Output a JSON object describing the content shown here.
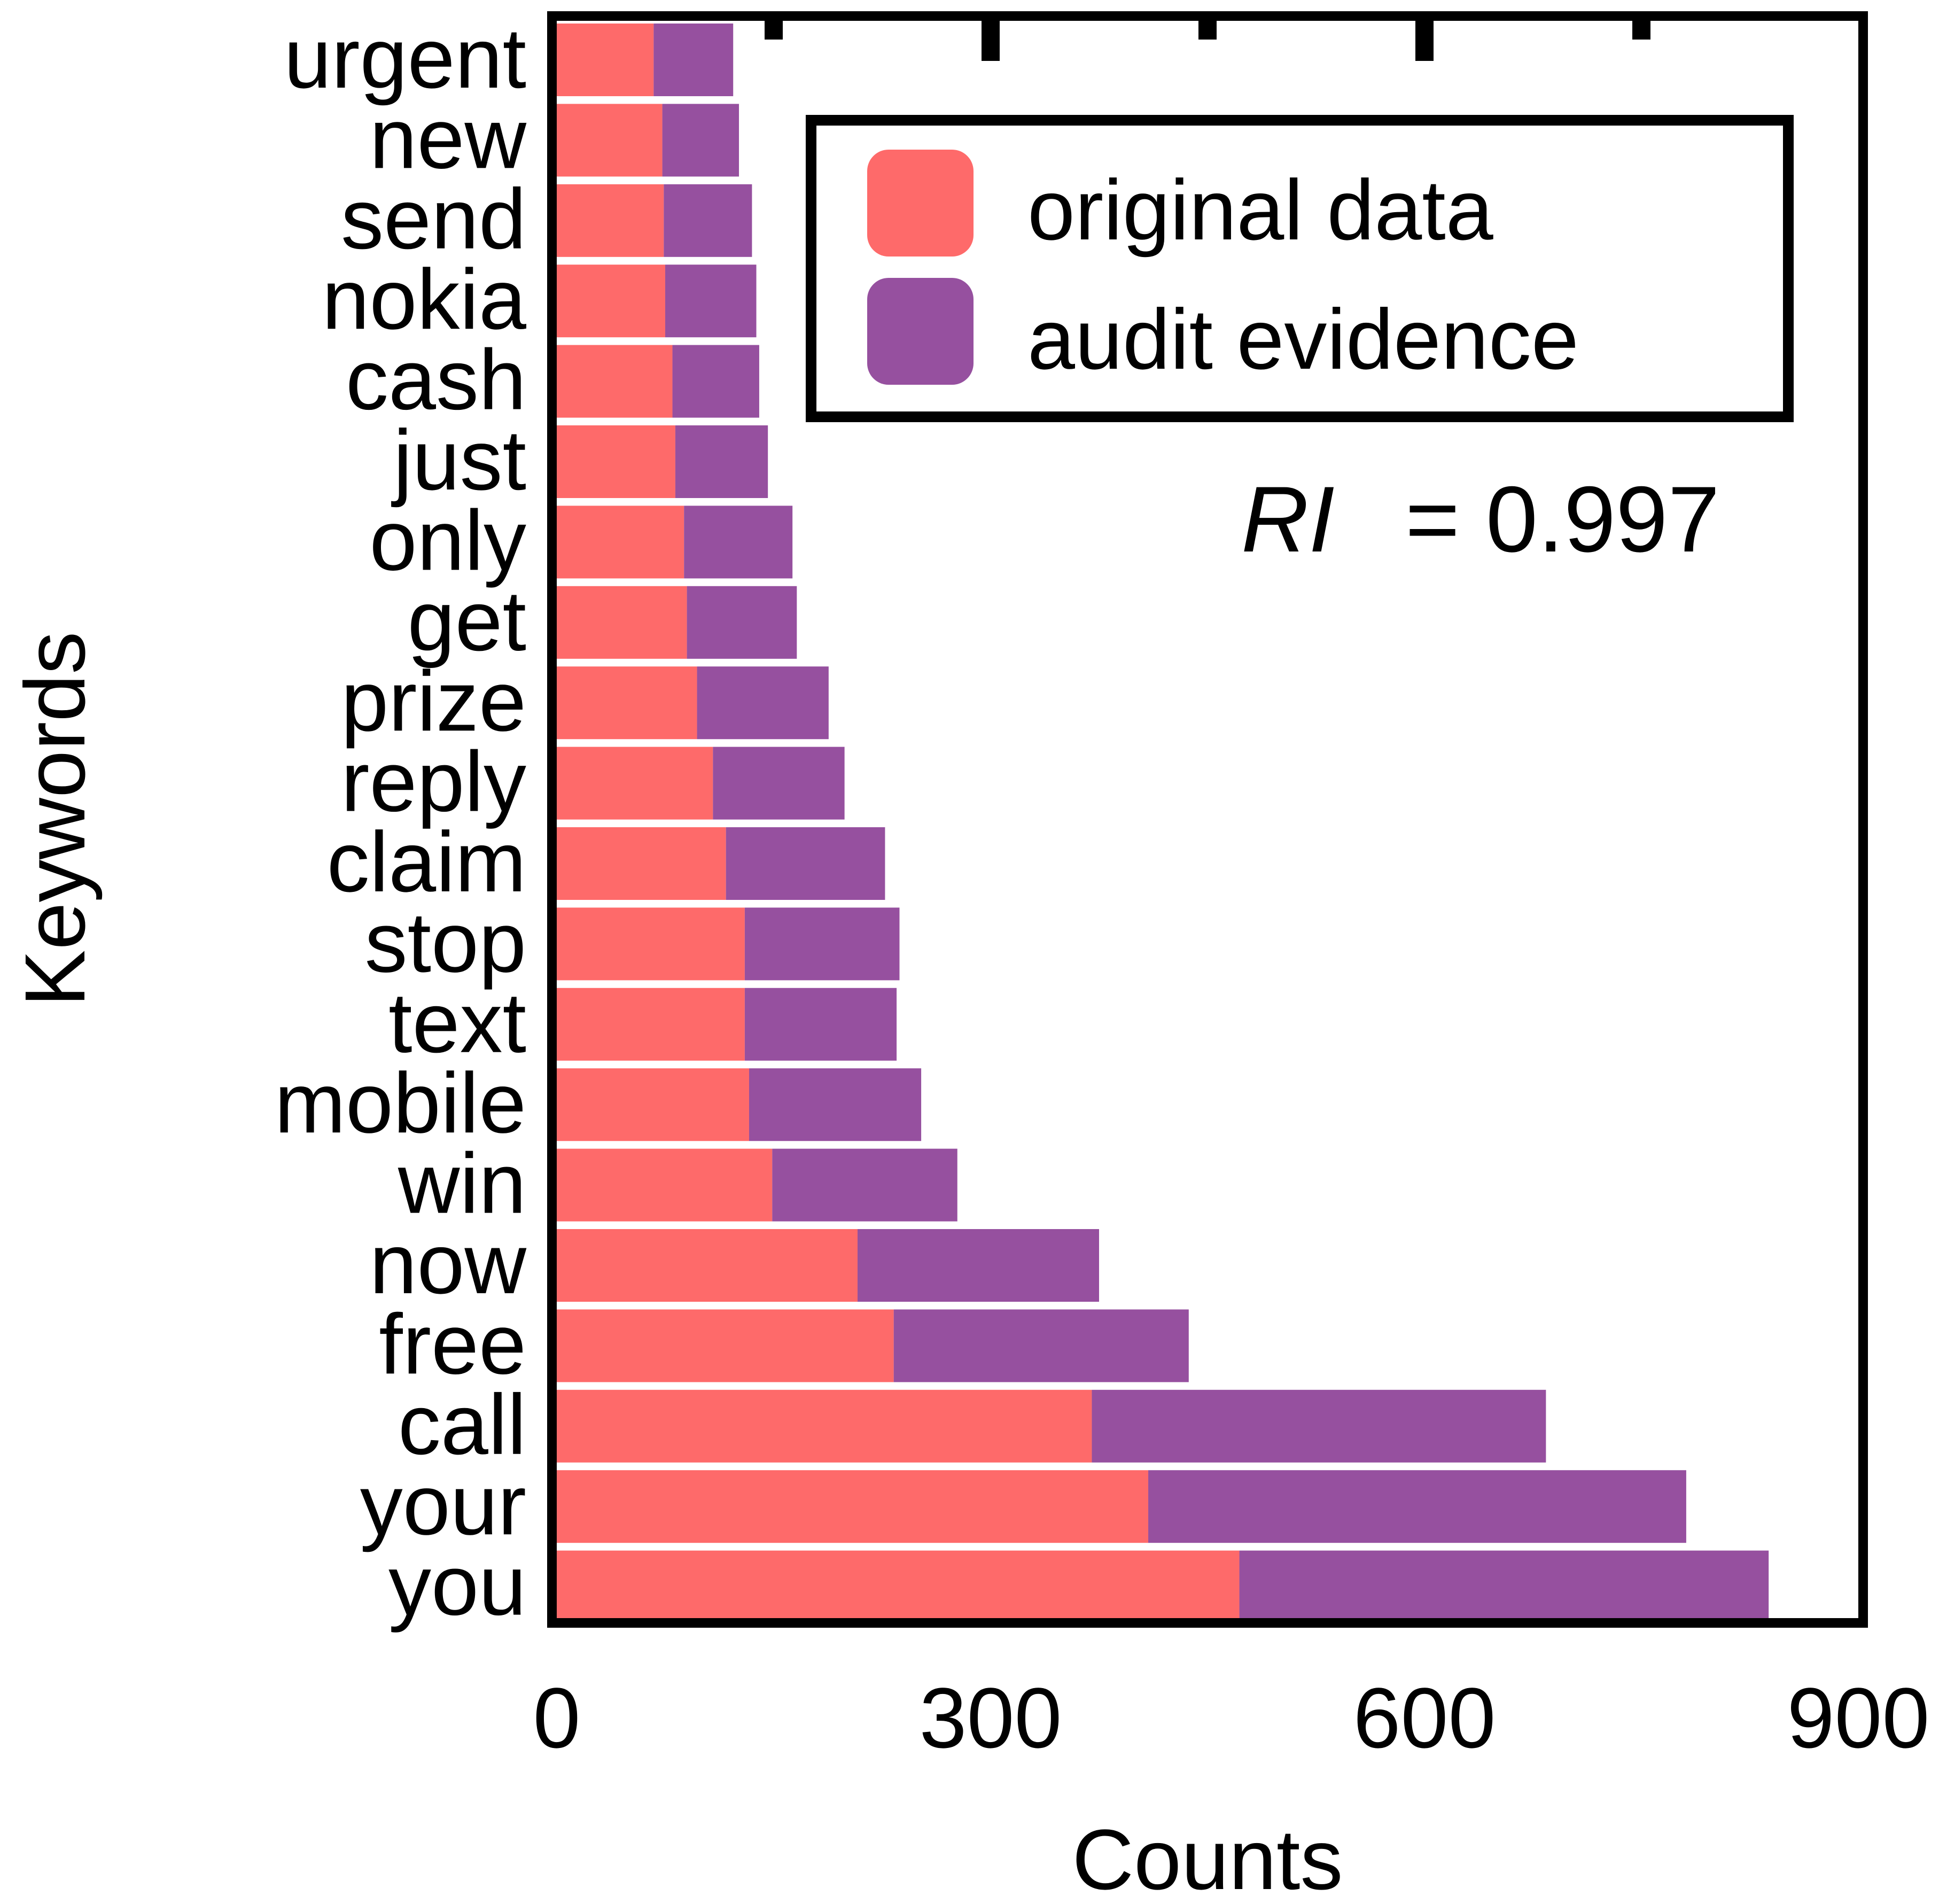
{
  "chart_data": {
    "type": "bar",
    "orientation": "horizontal",
    "stacked": true,
    "categories": [
      "urgent",
      "new",
      "send",
      "nokia",
      "cash",
      "just",
      "only",
      "get",
      "prize",
      "reply",
      "claim",
      "stop",
      "text",
      "mobile",
      "win",
      "now",
      "free",
      "call",
      "your",
      "you"
    ],
    "series": [
      {
        "name": "original data",
        "color": "#fe6a6a",
        "values": [
          67,
          73,
          74,
          75,
          80,
          82,
          88,
          90,
          97,
          108,
          117,
          130,
          130,
          133,
          149,
          208,
          233,
          370,
          409,
          472
        ]
      },
      {
        "name": "audit evidence",
        "color": "#96509f",
        "values": [
          55,
          53,
          61,
          63,
          60,
          64,
          75,
          76,
          91,
          91,
          110,
          107,
          105,
          119,
          128,
          167,
          204,
          314,
          372,
          366
        ]
      }
    ],
    "xlabel": "Counts",
    "ylabel": "Keywords",
    "xlim": [
      0,
      900
    ],
    "xticks": [
      "0",
      "300",
      "600",
      "900"
    ],
    "legend": {
      "position": "top-right",
      "entries": [
        "original data",
        "audit evidence"
      ]
    },
    "annotation": {
      "italic": "RI",
      "text": "= 0.997"
    },
    "grid": false
  }
}
